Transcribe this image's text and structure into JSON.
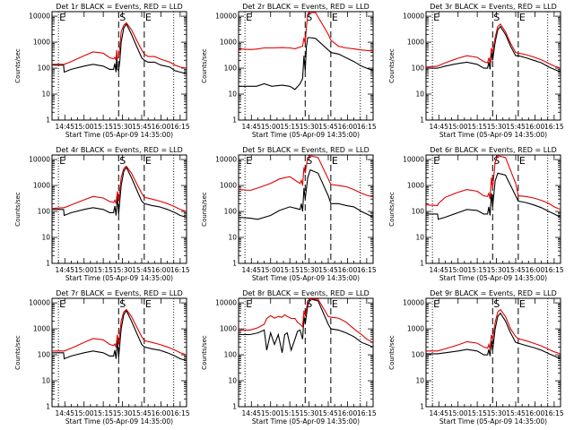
{
  "figure": {
    "panels": [
      {
        "title": "Det 1r BLACK = Events, RED = LLD"
      },
      {
        "title": "Det 2r BLACK = Events, RED = LLD"
      },
      {
        "title": "Det 3r BLACK = Events, RED = LLD"
      },
      {
        "title": "Det 4r BLACK = Events, RED = LLD"
      },
      {
        "title": "Det 5r BLACK = Events, RED = LLD"
      },
      {
        "title": "Det 6r BLACK = Events, RED = LLD"
      },
      {
        "title": "Det 7r BLACK = Events, RED = LLD"
      },
      {
        "title": "Det 8r BLACK = Events, RED = LLD"
      },
      {
        "title": "Det 9r BLACK = Events, RED = LLD"
      }
    ],
    "xlabel": "Start Time (05-Apr-09 14:35:00)",
    "ylabel": "Counts/sec",
    "x_tick_labels": [
      "14:45",
      "15:00",
      "15:15",
      "15:30",
      "15:45",
      "16:00",
      "16:15"
    ],
    "y_tick_labels": [
      "1",
      "10",
      "100",
      "1000",
      "10000"
    ],
    "marker_labels": [
      "E",
      "S",
      "E"
    ]
  },
  "chart_data": {
    "type": "line",
    "panel_count": 9,
    "xlabel": "Start Time (05-Apr-09 14:35:00)",
    "ylabel": "Counts/sec",
    "x_unit": "minutes after 14:35:00",
    "xlim": [
      0,
      105
    ],
    "ylim": [
      1,
      15000
    ],
    "y_scale": "log",
    "grid": false,
    "legend": "none",
    "colors": {
      "events": "#000000",
      "lld": "#e00000"
    },
    "vlines": {
      "dotted": [
        5,
        95
      ],
      "dashed": [
        52,
        72
      ],
      "labels": [
        "E",
        "S",
        "E"
      ]
    },
    "panels": [
      {
        "title": "Det 1r BLACK = Events, RED = LLD",
        "detector": "1r",
        "x": [
          0,
          9,
          9.5,
          15,
          25,
          32,
          40,
          45,
          48,
          49,
          50,
          50.5,
          51,
          52,
          53,
          54,
          56,
          58,
          62,
          66,
          70,
          72,
          75,
          80,
          85,
          92,
          96,
          100,
          105
        ],
        "series": [
          {
            "name": "Events",
            "color": "#000000",
            "y": [
              130,
              130,
              70,
              90,
              120,
              140,
              120,
              90,
              90,
              150,
              70,
              350,
              90,
              80,
              200,
              1000,
              3500,
              5000,
              2000,
              700,
              250,
              200,
              170,
              170,
              130,
              110,
              80,
              70,
              60
            ]
          },
          {
            "name": "LLD",
            "color": "#e00000",
            "y": [
              140,
              140,
              140,
              180,
              300,
              420,
              380,
              250,
              230,
              260,
              200,
              500,
              240,
              250,
              700,
              2500,
              4500,
              5500,
              3000,
              1200,
              500,
              350,
              280,
              280,
              220,
              170,
              130,
              110,
              100
            ]
          }
        ]
      },
      {
        "title": "Det 2r BLACK = Events, RED = LLD",
        "detector": "2r",
        "x": [
          0,
          9,
          14,
          20,
          26,
          34,
          40,
          44,
          48,
          50,
          51,
          52,
          53,
          54,
          55,
          60,
          70,
          72,
          78,
          84,
          90,
          96,
          100,
          105
        ],
        "series": [
          {
            "name": "Events",
            "color": "#000000",
            "y": [
              20,
              20,
              20,
              25,
              20,
              22,
              20,
              15,
              25,
              40,
              300,
              80,
              700,
              1500,
              1500,
              1400,
              500,
              400,
              350,
              250,
              180,
              120,
              100,
              80
            ]
          },
          {
            "name": "LLD",
            "color": "#e00000",
            "y": [
              550,
              520,
              540,
              600,
              600,
              620,
              600,
              560,
              650,
              700,
              1500,
              900,
              4000,
              12000,
              14000,
              14000,
              2000,
              1200,
              700,
              600,
              550,
              500,
              480,
              450
            ]
          }
        ]
      },
      {
        "title": "Det 3r BLACK = Events, RED = LLD",
        "detector": "3r",
        "x": [
          0,
          9,
          15,
          25,
          32,
          40,
          45,
          48,
          49,
          50,
          51,
          52,
          54,
          56,
          58,
          62,
          66,
          70,
          72,
          78,
          84,
          90,
          96,
          100,
          105
        ],
        "series": [
          {
            "name": "Events",
            "color": "#000000",
            "y": [
              100,
              100,
              120,
              150,
              170,
              140,
              100,
              100,
              170,
              90,
              400,
              200,
              1000,
              3000,
              4000,
              2000,
              700,
              300,
              300,
              250,
              200,
              160,
              110,
              90,
              70
            ]
          },
          {
            "name": "LLD",
            "color": "#e00000",
            "y": [
              110,
              120,
              160,
              240,
              300,
              260,
              180,
              160,
              250,
              150,
              600,
              400,
              1500,
              4000,
              5000,
              2500,
              900,
              400,
              380,
              330,
              270,
              210,
              150,
              120,
              100
            ]
          }
        ]
      },
      {
        "title": "Det 4r BLACK = Events, RED = LLD",
        "detector": "4r",
        "x": [
          0,
          9,
          9.5,
          15,
          25,
          32,
          40,
          45,
          48,
          49,
          50,
          51,
          52,
          54,
          56,
          58,
          62,
          66,
          70,
          72,
          78,
          84,
          90,
          96,
          100,
          105
        ],
        "series": [
          {
            "name": "Events",
            "color": "#000000",
            "y": [
              120,
              120,
              70,
              90,
              120,
              140,
              120,
              90,
              90,
              160,
              70,
              400,
              80,
              1000,
              3500,
              5000,
              2000,
              700,
              250,
              200,
              170,
              150,
              120,
              90,
              70,
              60
            ]
          },
          {
            "name": "LLD",
            "color": "#e00000",
            "y": [
              130,
              140,
              140,
              180,
              280,
              380,
              330,
              240,
              220,
              270,
              200,
              600,
              250,
              2000,
              4500,
              5500,
              3000,
              1200,
              500,
              350,
              300,
              250,
              200,
              150,
              120,
              100
            ]
          }
        ]
      },
      {
        "title": "Det 5r BLACK = Events, RED = LLD",
        "detector": "5r",
        "x": [
          0,
          9,
          15,
          25,
          32,
          40,
          45,
          48,
          49,
          50,
          51,
          52,
          54,
          56,
          62,
          70,
          72,
          78,
          84,
          90,
          96,
          100,
          105
        ],
        "series": [
          {
            "name": "Events",
            "color": "#000000",
            "y": [
              60,
              55,
              50,
              70,
              110,
              150,
              130,
              120,
              200,
              100,
              800,
              300,
              2000,
              4000,
              3000,
              400,
              200,
              200,
              170,
              150,
              100,
              80,
              60
            ]
          },
          {
            "name": "LLD",
            "color": "#e00000",
            "y": [
              700,
              650,
              800,
              1200,
              1800,
              2200,
              1500,
              1200,
              1600,
              1000,
              5000,
              3000,
              12000,
              14000,
              12000,
              1800,
              1100,
              1000,
              900,
              700,
              500,
              420,
              360
            ]
          }
        ]
      },
      {
        "title": "Det 6r BLACK = Events, RED = LLD",
        "detector": "6r",
        "x": [
          0,
          9,
          9.5,
          15,
          25,
          32,
          40,
          45,
          48,
          49,
          50,
          51,
          52,
          54,
          56,
          62,
          70,
          72,
          78,
          84,
          90,
          96,
          100,
          105
        ],
        "series": [
          {
            "name": "Events",
            "color": "#000000",
            "y": [
              80,
              80,
              50,
              60,
              90,
              120,
              110,
              80,
              80,
              150,
              70,
              500,
              150,
              1500,
              3000,
              2500,
              400,
              250,
              220,
              180,
              140,
              100,
              80,
              60
            ]
          },
          {
            "name": "LLD",
            "color": "#e00000",
            "y": [
              180,
              170,
              200,
              350,
              550,
              700,
              600,
              400,
              380,
              500,
              300,
              2000,
              800,
              8000,
              14000,
              12000,
              1200,
              400,
              380,
              330,
              270,
              200,
              150,
              120
            ]
          }
        ]
      },
      {
        "title": "Det 7r BLACK = Events, RED = LLD",
        "detector": "7r",
        "x": [
          0,
          9,
          9.5,
          15,
          25,
          32,
          40,
          45,
          48,
          49,
          50,
          51,
          52,
          54,
          56,
          58,
          62,
          66,
          70,
          72,
          78,
          84,
          90,
          96,
          100,
          105
        ],
        "series": [
          {
            "name": "Events",
            "color": "#000000",
            "y": [
              120,
              120,
              70,
              90,
              120,
              140,
              120,
              90,
              90,
              150,
              70,
              400,
              80,
              1000,
              3500,
              5000,
              2000,
              700,
              250,
              200,
              170,
              150,
              120,
              90,
              70,
              60
            ]
          },
          {
            "name": "LLD",
            "color": "#e00000",
            "y": [
              140,
              140,
              140,
              180,
              300,
              420,
              380,
              250,
              230,
              260,
              200,
              600,
              250,
              2000,
              4500,
              5500,
              3000,
              1200,
              500,
              350,
              300,
              250,
              200,
              150,
              120,
              100
            ]
          }
        ]
      },
      {
        "title": "Det 8r BLACK = Events, RED = LLD",
        "detector": "8r",
        "x": [
          0,
          9,
          15,
          20,
          22,
          25,
          28,
          31,
          34,
          36,
          38,
          41,
          44,
          46,
          48,
          50,
          51,
          52,
          54,
          56,
          62,
          70,
          72,
          78,
          84,
          90,
          96,
          100,
          105
        ],
        "series": [
          {
            "name": "Events",
            "color": "#000000",
            "y": [
              600,
              600,
              700,
              900,
              150,
              700,
              250,
              600,
              120,
              600,
              700,
              150,
              400,
              800,
              900,
              400,
              3000,
              1500,
              8000,
              14000,
              12000,
              1500,
              1000,
              900,
              700,
              500,
              300,
              250,
              200
            ]
          },
          {
            "name": "LLD",
            "color": "#e00000",
            "y": [
              900,
              900,
              1100,
              1500,
              2500,
              3200,
              2600,
              3000,
              2800,
              3500,
              3000,
              2500,
              2500,
              1800,
              1500,
              1200,
              5000,
              3000,
              12000,
              14000,
              14000,
              3000,
              2800,
              2600,
              1800,
              1000,
              600,
              400,
              300
            ]
          }
        ]
      },
      {
        "title": "Det 9r BLACK = Events, RED = LLD",
        "detector": "9r",
        "x": [
          0,
          9,
          15,
          25,
          32,
          40,
          45,
          48,
          49,
          50,
          51,
          52,
          54,
          56,
          58,
          62,
          66,
          70,
          72,
          78,
          84,
          90,
          96,
          100,
          105
        ],
        "series": [
          {
            "name": "Events",
            "color": "#000000",
            "y": [
              110,
              110,
              120,
              140,
              160,
              140,
              100,
              100,
              160,
              90,
              350,
              150,
              1000,
              3000,
              4000,
              2000,
              700,
              300,
              280,
              230,
              190,
              150,
              110,
              90,
              70
            ]
          },
          {
            "name": "LLD",
            "color": "#e00000",
            "y": [
              140,
              140,
              170,
              240,
              320,
              280,
              200,
              180,
              250,
              160,
              600,
              400,
              1800,
              4500,
              5500,
              3000,
              1000,
              500,
              420,
              350,
              280,
              220,
              160,
              130,
              110
            ]
          }
        ]
      }
    ]
  }
}
